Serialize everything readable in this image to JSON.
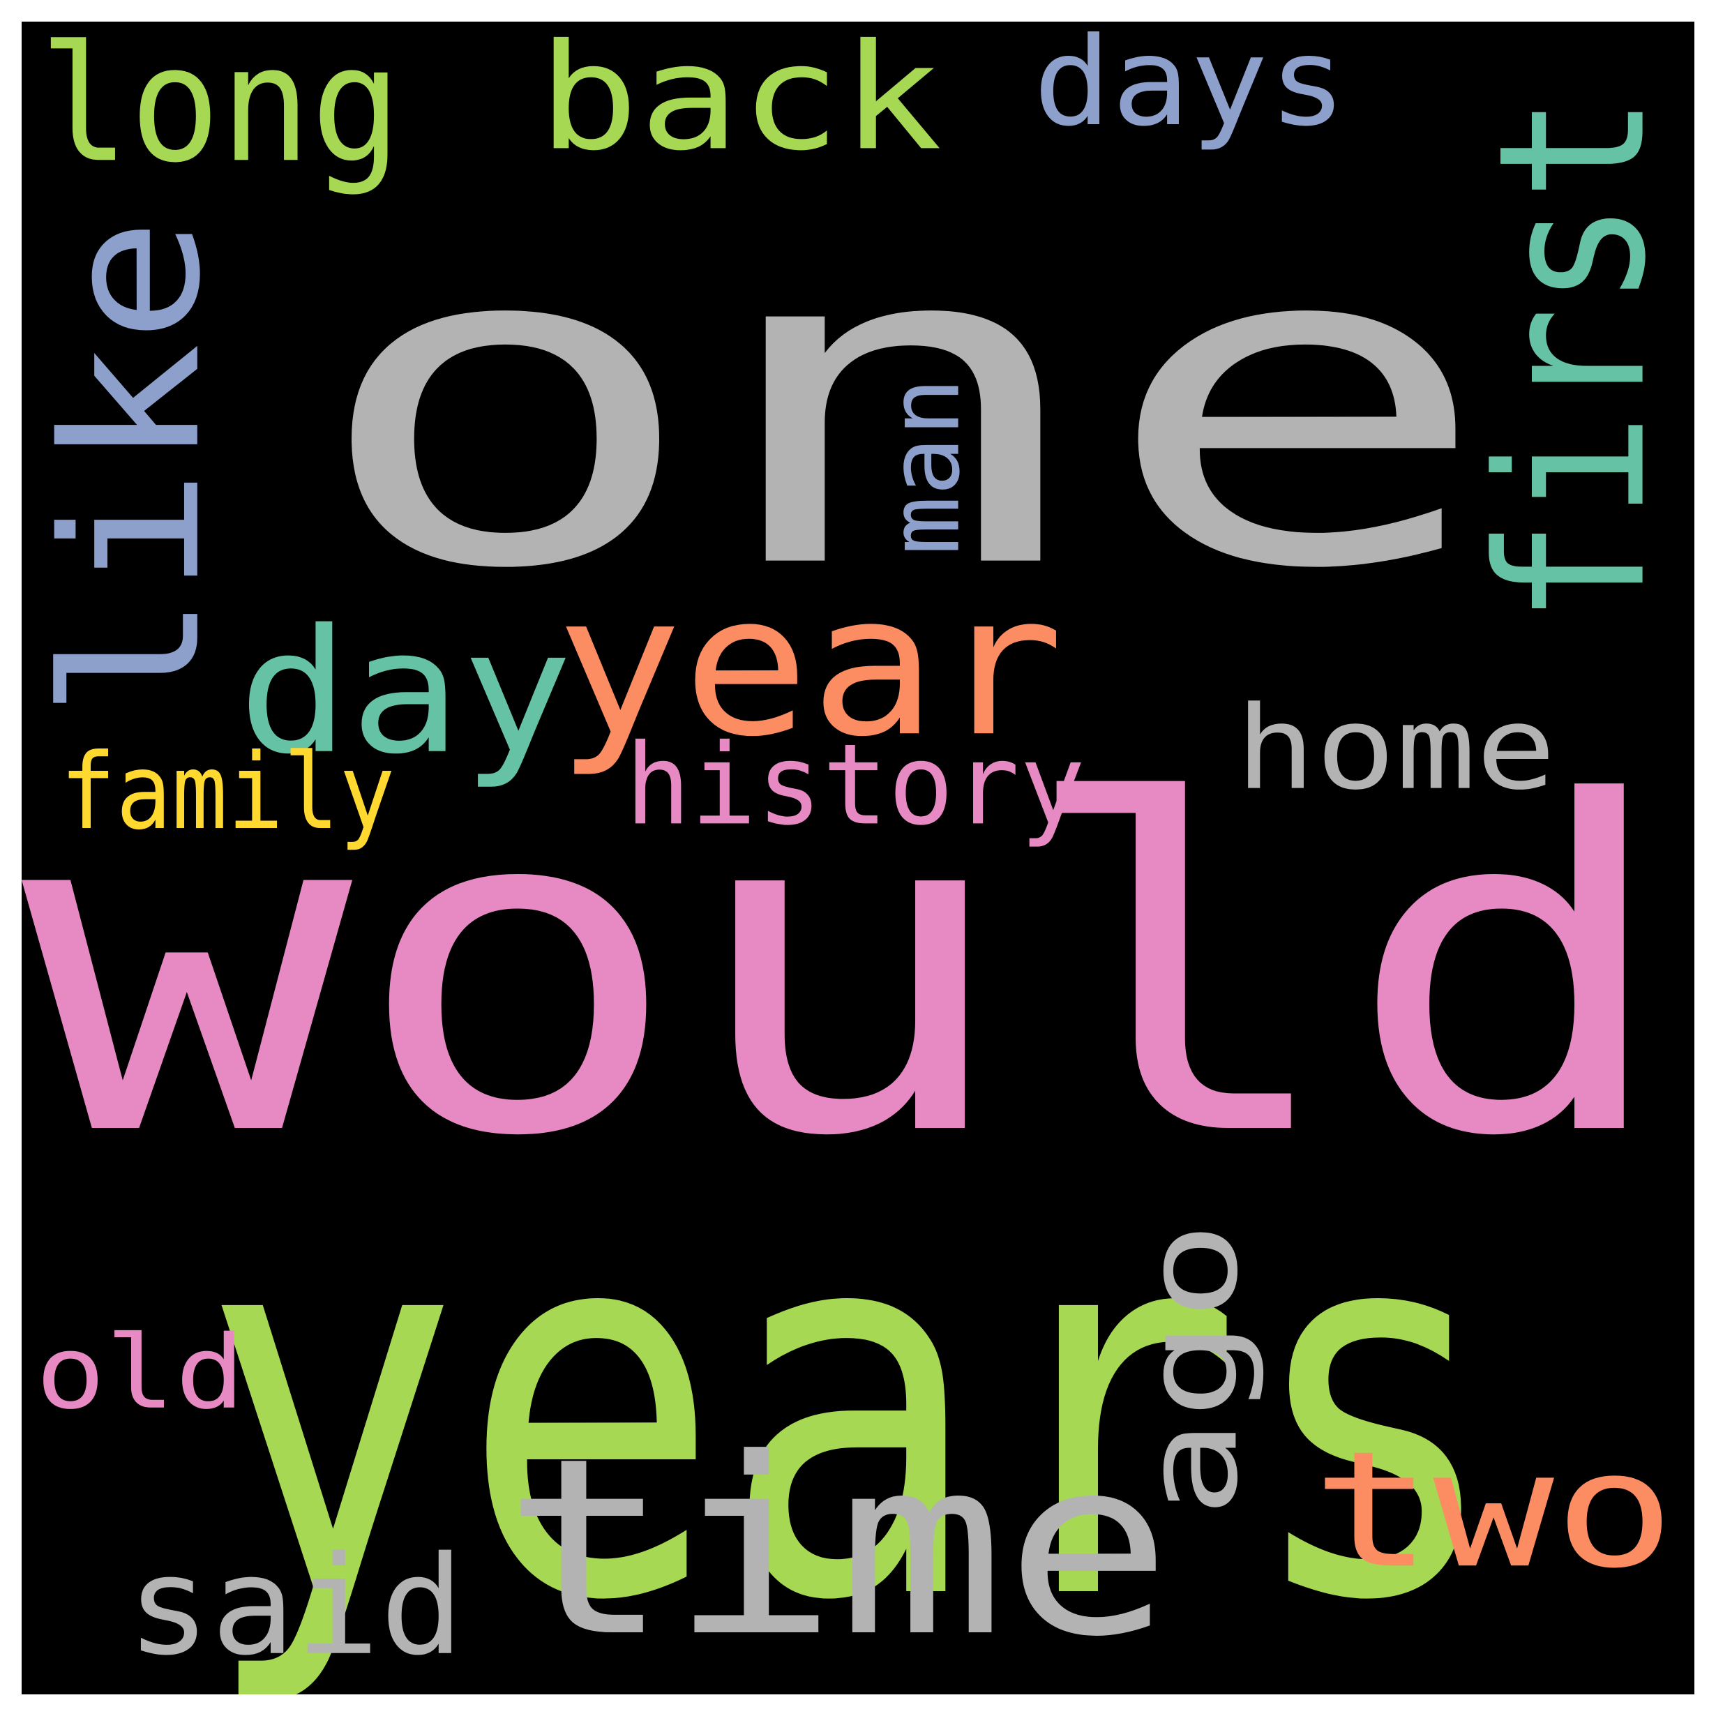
{
  "wordcloud": {
    "background": "#000000",
    "words": [
      {
        "text": "one",
        "color": "#b3b3b3"
      },
      {
        "text": "would",
        "color": "#e78ac3"
      },
      {
        "text": "years",
        "color": "#a6d854"
      },
      {
        "text": "time",
        "color": "#b3b3b3"
      },
      {
        "text": "year",
        "color": "#fc8d62"
      },
      {
        "text": "back",
        "color": "#a6d854"
      },
      {
        "text": "like",
        "color": "#8da0cb"
      },
      {
        "text": "first",
        "color": "#66c2a5"
      },
      {
        "text": "long",
        "color": "#a6d854"
      },
      {
        "text": "day",
        "color": "#66c2a5"
      },
      {
        "text": "two",
        "color": "#fc8d62"
      },
      {
        "text": "days",
        "color": "#8da0cb"
      },
      {
        "text": "home",
        "color": "#b3b3b3"
      },
      {
        "text": "said",
        "color": "#b3b3b3"
      },
      {
        "text": "history",
        "color": "#e78ac3"
      },
      {
        "text": "ago",
        "color": "#b3b3b3"
      },
      {
        "text": "old",
        "color": "#e78ac3"
      },
      {
        "text": "man",
        "color": "#8da0cb"
      },
      {
        "text": "family",
        "color": "#ffd92f"
      }
    ]
  }
}
